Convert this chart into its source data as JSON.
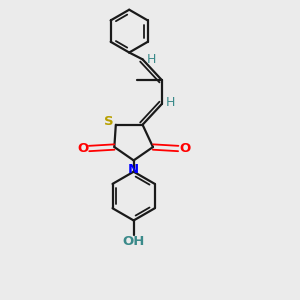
{
  "background_color": "#ebebeb",
  "bond_color": "#1a1a1a",
  "S_color": "#b8a000",
  "N_color": "#0000ff",
  "O_color": "#ff0000",
  "H_color": "#3a8a8a",
  "OH_color": "#3a8a8a",
  "figsize": [
    3.0,
    3.0
  ],
  "dpi": 100,
  "xlim": [
    0,
    10
  ],
  "ylim": [
    0,
    10
  ]
}
